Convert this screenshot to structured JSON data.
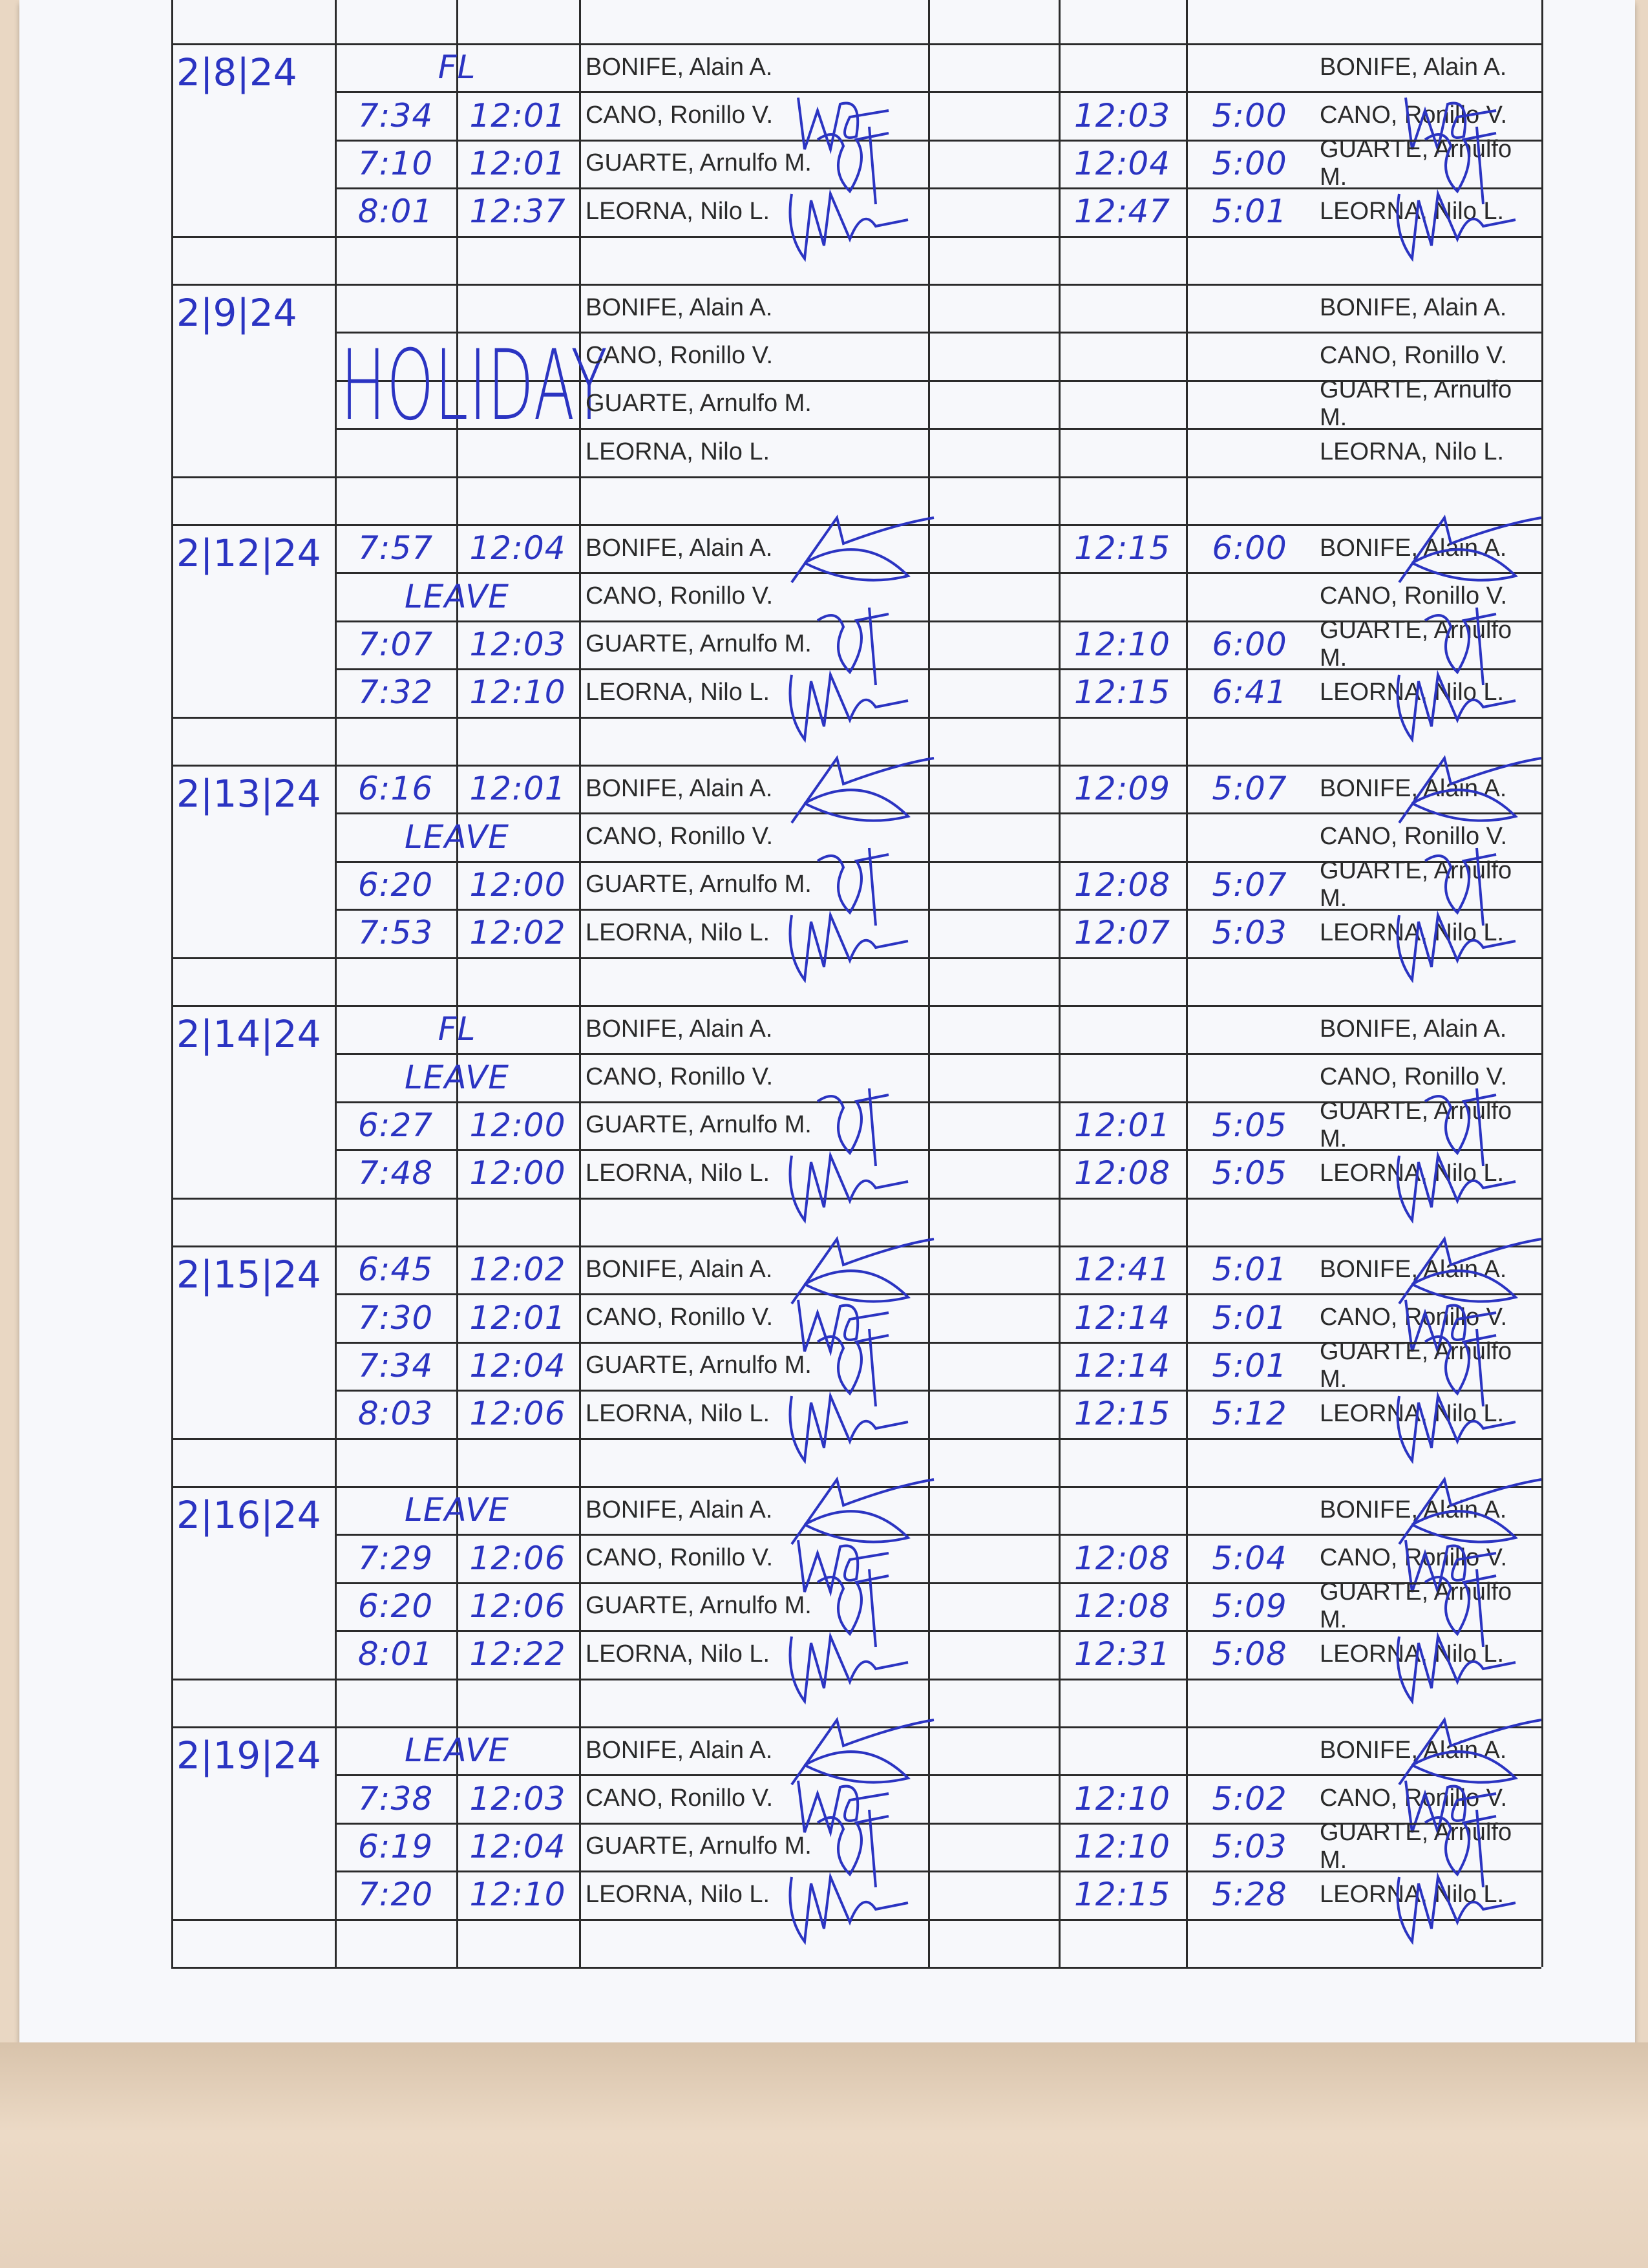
{
  "ink_color": "#2b34c2",
  "employees": [
    "BONIFE, Alain A.",
    "CANO, Ronillo V.",
    "GUARTE, Arnulfo M.",
    "LEORNA, Nilo L."
  ],
  "blocks": [
    {
      "date": "2|8|24",
      "rows": [
        {
          "am_in": "FL",
          "am_out": "",
          "pm_in": "",
          "pm_out": "",
          "signed": false
        },
        {
          "am_in": "7:34",
          "am_out": "12:01",
          "pm_in": "12:03",
          "pm_out": "5:00",
          "signed": true
        },
        {
          "am_in": "7:10",
          "am_out": "12:01",
          "pm_in": "12:04",
          "pm_out": "5:00",
          "signed": true
        },
        {
          "am_in": "8:01",
          "am_out": "12:37",
          "pm_in": "12:47",
          "pm_out": "5:01",
          "signed": true
        }
      ]
    },
    {
      "date": "2|9|24",
      "note": "HOLIDAY",
      "rows": [
        {
          "am_in": "",
          "am_out": "",
          "pm_in": "",
          "pm_out": "",
          "signed": false
        },
        {
          "am_in": "",
          "am_out": "",
          "pm_in": "",
          "pm_out": "",
          "signed": false
        },
        {
          "am_in": "",
          "am_out": "",
          "pm_in": "",
          "pm_out": "",
          "signed": false
        },
        {
          "am_in": "",
          "am_out": "",
          "pm_in": "",
          "pm_out": "",
          "signed": false
        }
      ]
    },
    {
      "date": "2|12|24",
      "rows": [
        {
          "am_in": "7:57",
          "am_out": "12:04",
          "pm_in": "12:15",
          "pm_out": "6:00",
          "signed": true
        },
        {
          "am_in": "LEAVE",
          "am_out": "",
          "pm_in": "",
          "pm_out": "",
          "signed": false
        },
        {
          "am_in": "7:07",
          "am_out": "12:03",
          "pm_in": "12:10",
          "pm_out": "6:00",
          "signed": true
        },
        {
          "am_in": "7:32",
          "am_out": "12:10",
          "pm_in": "12:15",
          "pm_out": "6:41",
          "signed": true
        }
      ]
    },
    {
      "date": "2|13|24",
      "rows": [
        {
          "am_in": "6:16",
          "am_out": "12:01",
          "pm_in": "12:09",
          "pm_out": "5:07",
          "signed": true
        },
        {
          "am_in": "LEAVE",
          "am_out": "",
          "pm_in": "",
          "pm_out": "",
          "signed": false
        },
        {
          "am_in": "6:20",
          "am_out": "12:00",
          "pm_in": "12:08",
          "pm_out": "5:07",
          "signed": true
        },
        {
          "am_in": "7:53",
          "am_out": "12:02",
          "pm_in": "12:07",
          "pm_out": "5:03",
          "signed": true
        }
      ]
    },
    {
      "date": "2|14|24",
      "rows": [
        {
          "am_in": "FL",
          "am_out": "",
          "pm_in": "",
          "pm_out": "",
          "signed": false
        },
        {
          "am_in": "LEAVE",
          "am_out": "",
          "pm_in": "",
          "pm_out": "",
          "signed": false
        },
        {
          "am_in": "6:27",
          "am_out": "12:00",
          "pm_in": "12:01",
          "pm_out": "5:05",
          "signed": true
        },
        {
          "am_in": "7:48",
          "am_out": "12:00",
          "pm_in": "12:08",
          "pm_out": "5:05",
          "signed": true
        }
      ]
    },
    {
      "date": "2|15|24",
      "rows": [
        {
          "am_in": "6:45",
          "am_out": "12:02",
          "pm_in": "12:41",
          "pm_out": "5:01",
          "signed": true
        },
        {
          "am_in": "7:30",
          "am_out": "12:01",
          "pm_in": "12:14",
          "pm_out": "5:01",
          "signed": true
        },
        {
          "am_in": "7:34",
          "am_out": "12:04",
          "pm_in": "12:14",
          "pm_out": "5:01",
          "signed": true
        },
        {
          "am_in": "8:03",
          "am_out": "12:06",
          "pm_in": "12:15",
          "pm_out": "5:12",
          "signed": true
        }
      ]
    },
    {
      "date": "2|16|24",
      "rows": [
        {
          "am_in": "LEAVE",
          "am_out": "",
          "pm_in": "",
          "pm_out": "",
          "signed": true
        },
        {
          "am_in": "7:29",
          "am_out": "12:06",
          "pm_in": "12:08",
          "pm_out": "5:04",
          "signed": true
        },
        {
          "am_in": "6:20",
          "am_out": "12:06",
          "pm_in": "12:08",
          "pm_out": "5:09",
          "signed": true
        },
        {
          "am_in": "8:01",
          "am_out": "12:22",
          "pm_in": "12:31",
          "pm_out": "5:08",
          "signed": true
        }
      ]
    },
    {
      "date": "2|19|24",
      "rows": [
        {
          "am_in": "LEAVE",
          "am_out": "",
          "pm_in": "",
          "pm_out": "",
          "signed": true
        },
        {
          "am_in": "7:38",
          "am_out": "12:03",
          "pm_in": "12:10",
          "pm_out": "5:02",
          "signed": true
        },
        {
          "am_in": "6:19",
          "am_out": "12:04",
          "pm_in": "12:10",
          "pm_out": "5:03",
          "signed": true
        },
        {
          "am_in": "7:20",
          "am_out": "12:10",
          "pm_in": "12:15",
          "pm_out": "5:28",
          "signed": true
        }
      ]
    }
  ]
}
